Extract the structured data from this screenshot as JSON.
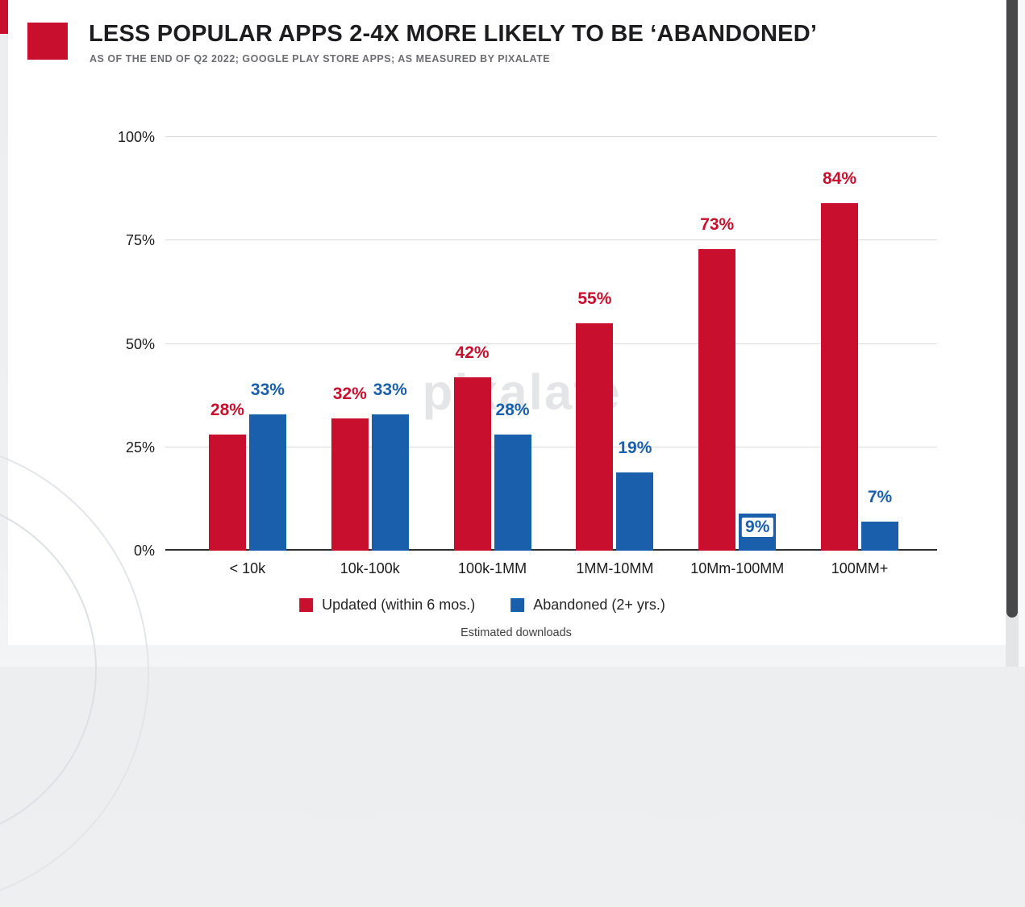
{
  "header": {
    "title": "LESS POPULAR APPS 2-4X MORE LIKELY TO BE ‘ABANDONED’",
    "subtitle": "AS OF THE END OF Q2 2022; GOOGLE PLAY STORE APPS; AS MEASURED BY PIXALATE"
  },
  "watermark": "pixalate",
  "colors": {
    "accent_red": "#C8102E",
    "series_red": "#C8102E",
    "series_blue": "#1A5FAB",
    "scrollbar_thumb": "#47484A"
  },
  "chart_data": {
    "type": "bar",
    "title": "LESS POPULAR APPS 2-4X MORE LIKELY TO BE ‘ABANDONED’",
    "subtitle": "AS OF THE END OF Q2 2022; GOOGLE PLAY STORE APPS; AS MEASURED BY PIXALATE",
    "categories": [
      "< 10k",
      "10k-100k",
      "100k-1MM",
      "1MM-10MM",
      "10Mm-100MM",
      "100MM+"
    ],
    "series": [
      {
        "name": "Updated (within 6 mos.)",
        "color": "#C8102E",
        "values": [
          28,
          32,
          42,
          55,
          73,
          84
        ]
      },
      {
        "name": "Abandoned (2+ yrs.)",
        "color": "#1A5FAB",
        "values": [
          33,
          33,
          28,
          19,
          9,
          7
        ]
      }
    ],
    "xlabel": "Estimated downloads",
    "ylabel": "",
    "ylim": [
      0,
      100
    ],
    "yticks": [
      "0%",
      "25%",
      "50%",
      "75%",
      "100%"
    ],
    "grid": true,
    "legend_position": "bottom",
    "data_labels": "percent above bars, colored per series",
    "label_inside_points": [
      {
        "series": 1,
        "index": 4
      }
    ]
  }
}
